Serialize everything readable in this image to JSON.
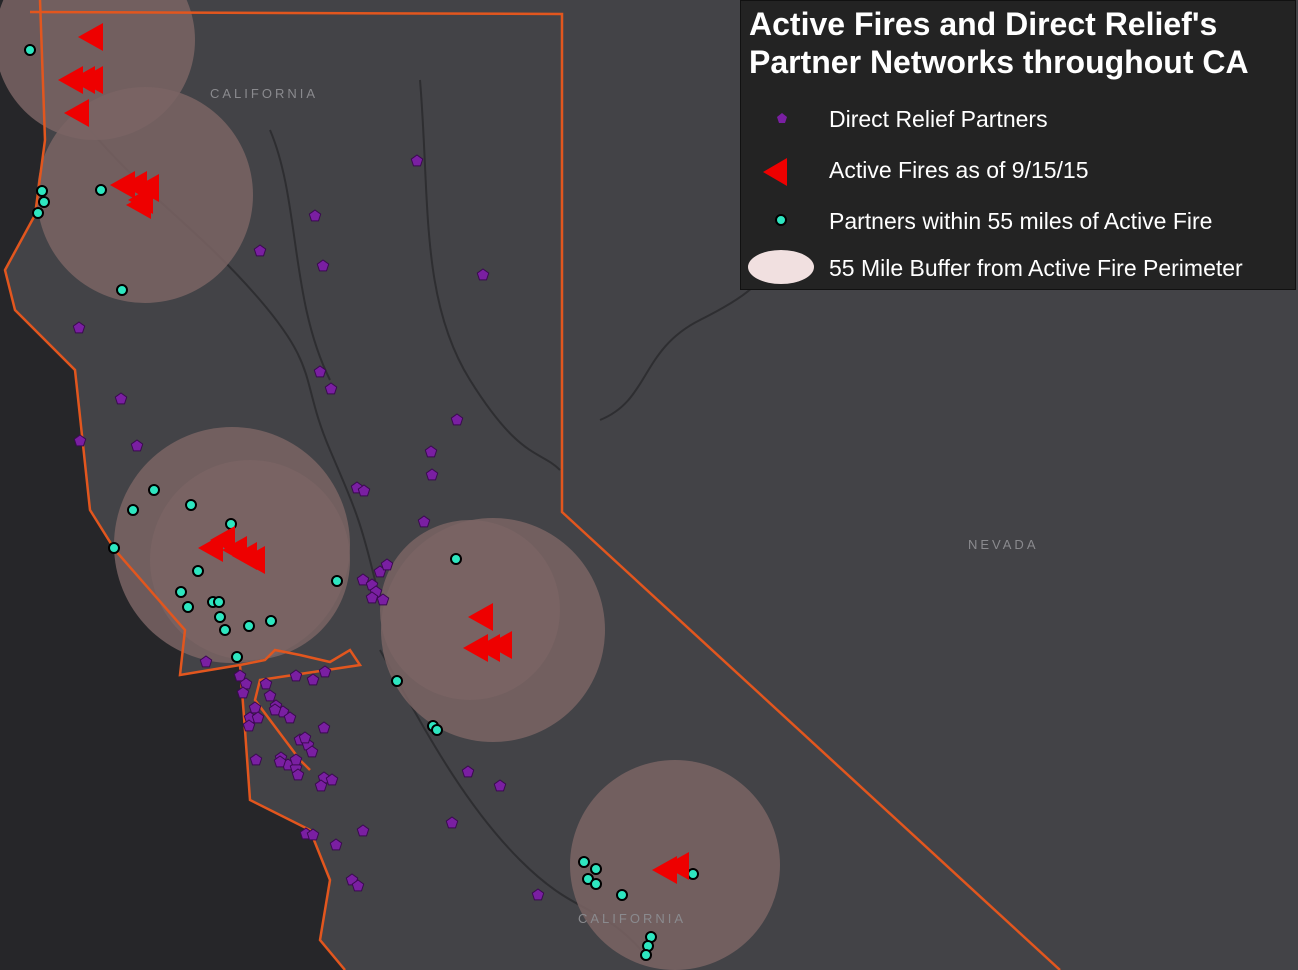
{
  "legend": {
    "title_line1": "Active Fires and Direct Relief's",
    "title_line2": "Partner Networks throughout CA",
    "items": [
      {
        "label": "Direct Relief Partners",
        "symbol": "purple-pentagon"
      },
      {
        "label": "Active Fires as of 9/15/15",
        "symbol": "red-triangle"
      },
      {
        "label": "Partners within 55 miles of Active Fire",
        "symbol": "teal-circle"
      },
      {
        "label": "55 Mile Buffer from Active Fire Perimeter",
        "symbol": "pink-ellipse"
      }
    ]
  },
  "map_labels": {
    "california_north": "CALIFORNIA",
    "nevada": "NEVADA",
    "california_south": "CALIFORNIA"
  },
  "colors": {
    "land": "#434347",
    "ocean": "#262629",
    "border": "#e2561e",
    "partner": "#7a1fa2",
    "fire": "#ee0000",
    "nearby_partner": "#2ee6c0",
    "buffer": "#7a6464"
  }
}
